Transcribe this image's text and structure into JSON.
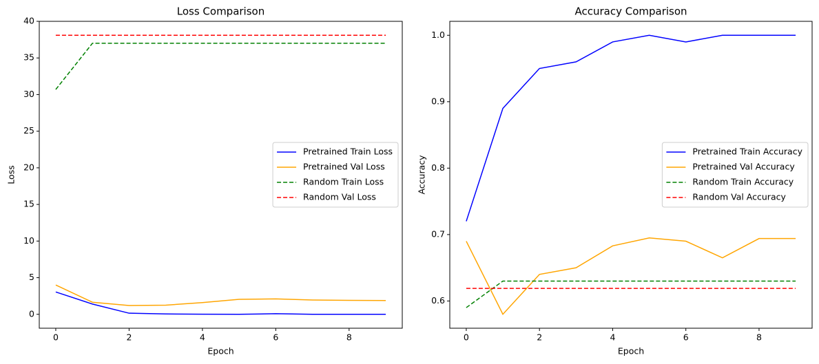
{
  "chart_data": [
    {
      "type": "line",
      "title": "Loss Comparison",
      "x_label": "Epoch",
      "y_label": "Loss",
      "x": [
        0,
        1,
        2,
        3,
        4,
        5,
        6,
        7,
        8,
        9
      ],
      "xlim": [
        -0.45,
        9.45
      ],
      "xticks": [
        0,
        2,
        4,
        6,
        8
      ],
      "ylim": [
        -1.9,
        40
      ],
      "yticks": [
        0,
        5,
        10,
        15,
        20,
        25,
        30,
        35,
        40
      ],
      "legend": "center right",
      "series": [
        {
          "name": "Pretrained Train Loss",
          "color": "#0000ff",
          "dashed": false,
          "values": [
            3.05,
            1.4,
            0.15,
            0.05,
            0.02,
            0.0,
            0.08,
            0.0,
            0.0,
            0.0
          ]
        },
        {
          "name": "Pretrained Val Loss",
          "color": "#ffa500",
          "dashed": false,
          "values": [
            4.0,
            1.65,
            1.2,
            1.25,
            1.6,
            2.05,
            2.1,
            1.95,
            1.9,
            1.88
          ]
        },
        {
          "name": "Random Train Loss",
          "color": "#008000",
          "dashed": true,
          "values": [
            30.7,
            37.0,
            37.0,
            37.0,
            37.0,
            37.0,
            37.0,
            37.0,
            37.0,
            37.0
          ]
        },
        {
          "name": "Random Val Loss",
          "color": "#ff0000",
          "dashed": true,
          "values": [
            38.1,
            38.1,
            38.1,
            38.1,
            38.1,
            38.1,
            38.1,
            38.1,
            38.1,
            38.1
          ]
        }
      ]
    },
    {
      "type": "line",
      "title": "Accuracy Comparison",
      "x_label": "Epoch",
      "y_label": "Accuracy",
      "x": [
        0,
        1,
        2,
        3,
        4,
        5,
        6,
        7,
        8,
        9
      ],
      "xlim": [
        -0.45,
        9.45
      ],
      "xticks": [
        0,
        2,
        4,
        6,
        8
      ],
      "ylim": [
        0.559,
        1.021
      ],
      "yticks": [
        0.6,
        0.7,
        0.8,
        0.9,
        {
          "value": 1.0,
          "label": "1.0"
        }
      ],
      "legend": "center right",
      "series": [
        {
          "name": "Pretrained Train Accuracy",
          "color": "#0000ff",
          "dashed": false,
          "values": [
            0.72,
            0.89,
            0.95,
            0.96,
            0.99,
            1.0,
            0.99,
            1.0,
            1.0,
            1.0
          ]
        },
        {
          "name": "Pretrained Val Accuracy",
          "color": "#ffa500",
          "dashed": false,
          "values": [
            0.69,
            0.58,
            0.64,
            0.65,
            0.683,
            0.695,
            0.69,
            0.665,
            0.694,
            0.694
          ]
        },
        {
          "name": "Random Train Accuracy",
          "color": "#008000",
          "dashed": true,
          "values": [
            0.59,
            0.63,
            0.63,
            0.63,
            0.63,
            0.63,
            0.63,
            0.63,
            0.63,
            0.63
          ]
        },
        {
          "name": "Random Val Accuracy",
          "color": "#ff0000",
          "dashed": true,
          "values": [
            0.619,
            0.619,
            0.619,
            0.619,
            0.619,
            0.619,
            0.619,
            0.619,
            0.619,
            0.619
          ]
        }
      ]
    }
  ]
}
